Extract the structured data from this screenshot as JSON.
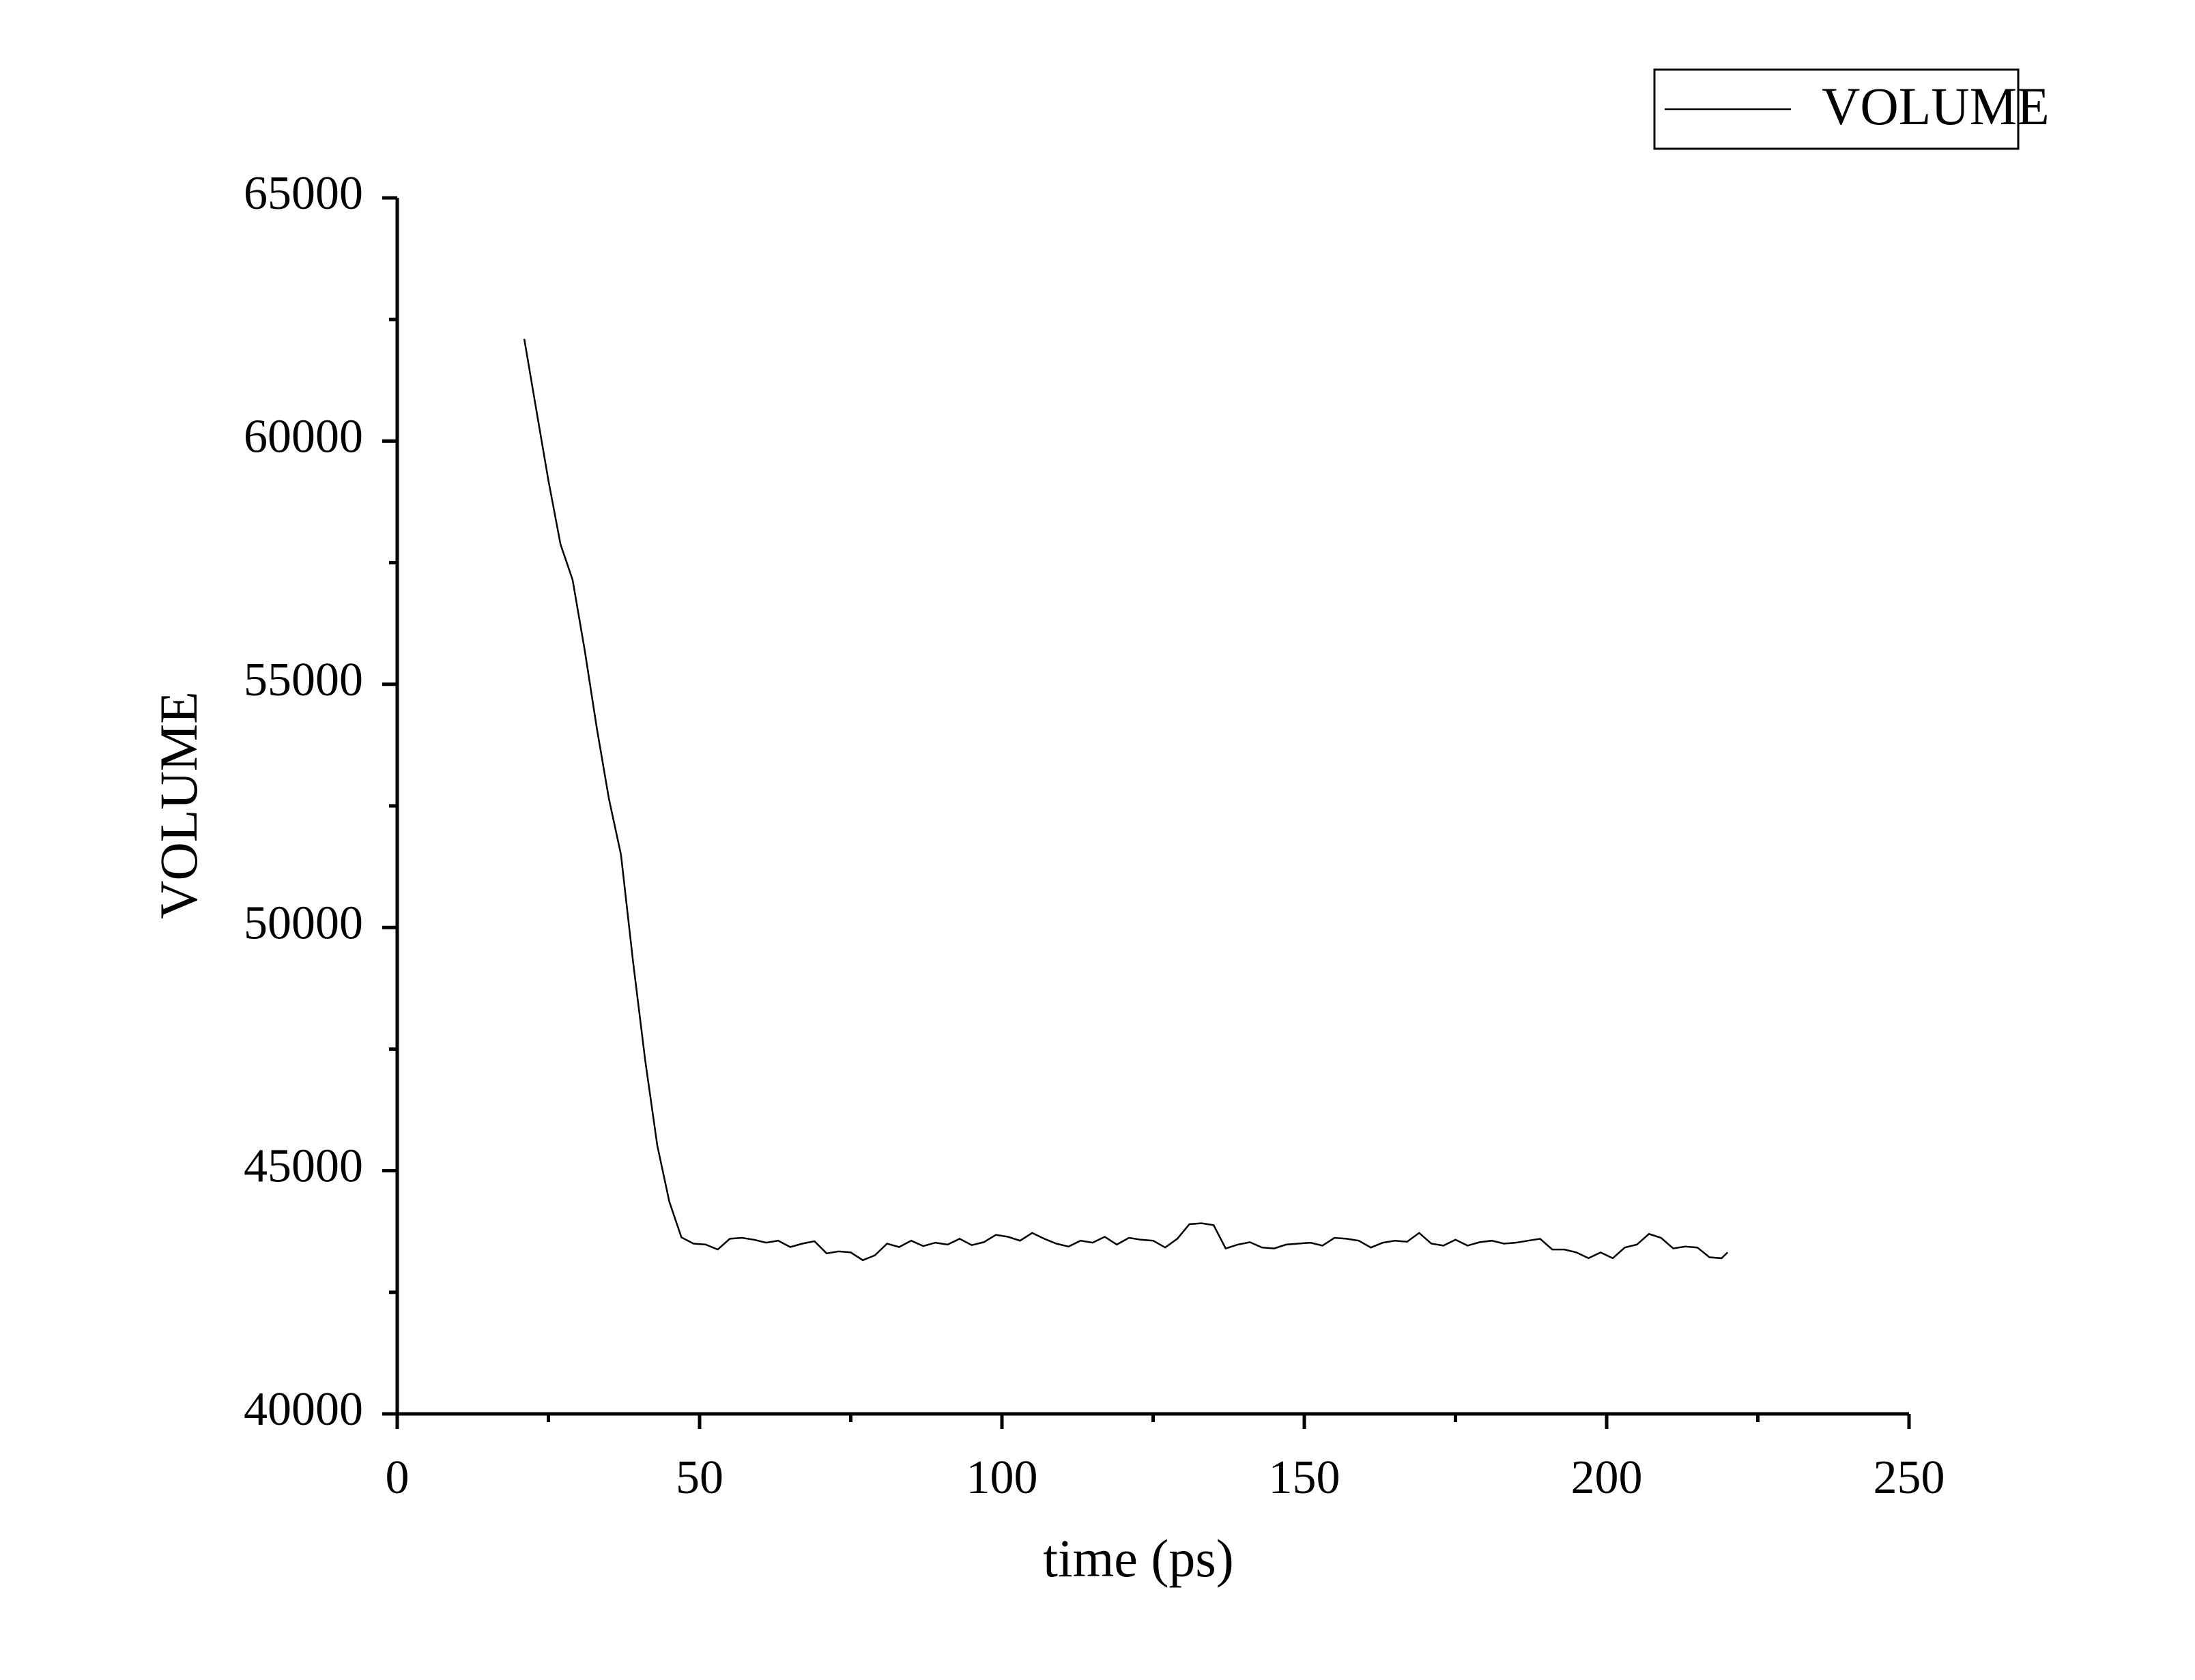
{
  "chart_data": {
    "type": "line",
    "xlabel": "time (ps)",
    "ylabel": "VOLUME",
    "x": [
      21,
      23,
      25,
      27,
      29,
      31,
      33,
      35,
      37,
      39,
      41,
      43,
      45,
      47,
      49,
      51,
      53,
      55,
      57,
      59,
      61,
      63,
      65,
      67,
      69,
      71,
      73,
      75,
      77,
      79,
      81,
      83,
      85,
      87,
      89,
      91,
      93,
      95,
      97,
      99,
      101,
      103,
      105,
      107,
      109,
      111,
      113,
      115,
      117,
      119,
      121,
      123,
      125,
      127,
      129,
      131,
      133,
      135,
      137,
      139,
      141,
      143,
      145,
      147,
      149,
      151,
      153,
      155,
      157,
      159,
      161,
      163,
      165,
      167,
      169,
      171,
      173,
      175,
      177,
      179,
      181,
      183,
      185,
      187,
      189,
      191,
      193,
      195,
      197,
      199,
      201,
      203,
      205,
      207,
      209,
      211,
      213,
      215,
      217,
      219,
      220
    ],
    "series": [
      {
        "name": "VOLUME",
        "color": "#000000",
        "values": [
          62100,
          60640,
          59190,
          57880,
          57150,
          55700,
          54100,
          52650,
          51500,
          49300,
          47270,
          45520,
          44360,
          43630,
          43500,
          43480,
          43380,
          43600,
          43620,
          43580,
          43520,
          43560,
          43430,
          43500,
          43550,
          43300,
          43340,
          43320,
          43160,
          43260,
          43500,
          43430,
          43560,
          43450,
          43520,
          43480,
          43600,
          43470,
          43530,
          43680,
          43640,
          43560,
          43720,
          43600,
          43500,
          43440,
          43560,
          43520,
          43640,
          43480,
          43620,
          43580,
          43560,
          43420,
          43600,
          43900,
          43920,
          43880,
          43400,
          43480,
          43530,
          43420,
          43400,
          43480,
          43500,
          43520,
          43460,
          43620,
          43600,
          43560,
          43420,
          43520,
          43560,
          43540,
          43720,
          43500,
          43460,
          43580,
          43460,
          43530,
          43560,
          43500,
          43520,
          43560,
          43600,
          43380,
          43380,
          43320,
          43200,
          43320,
          43200,
          43420,
          43480,
          43700,
          43620,
          43400,
          43440,
          43420,
          43220,
          43200,
          43320
        ]
      }
    ],
    "xlim": [
      0,
      250
    ],
    "xticks": [
      0,
      50,
      100,
      150,
      200,
      250
    ],
    "ylim": [
      40000,
      65000
    ],
    "yticks": [
      40000,
      45000,
      50000,
      55000,
      60000,
      65000
    ],
    "grid": false,
    "legend": "top-right"
  }
}
